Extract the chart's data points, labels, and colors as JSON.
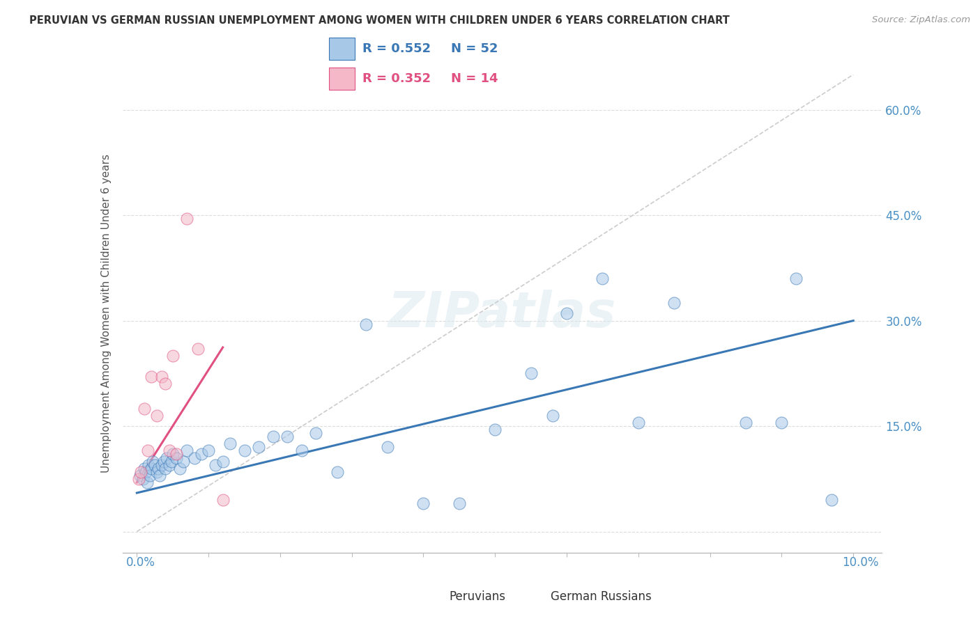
{
  "title": "PERUVIAN VS GERMAN RUSSIAN UNEMPLOYMENT AMONG WOMEN WITH CHILDREN UNDER 6 YEARS CORRELATION CHART",
  "source": "Source: ZipAtlas.com",
  "ylabel": "Unemployment Among Women with Children Under 6 years",
  "xlim": [
    0.0,
    10.0
  ],
  "ylim": [
    -3.0,
    65.0
  ],
  "yticks": [
    0.0,
    15.0,
    30.0,
    45.0,
    60.0
  ],
  "ytick_labels": [
    "",
    "15.0%",
    "30.0%",
    "45.0%",
    "60.0%"
  ],
  "legend_blue_r": "R = 0.552",
  "legend_blue_n": "N = 52",
  "legend_pink_r": "R = 0.352",
  "legend_pink_n": "N = 14",
  "blue_color": "#a8c8e8",
  "pink_color": "#f4b8c8",
  "blue_line_color": "#3a78b5",
  "pink_line_color": "#e05080",
  "peruvians_x": [
    0.05,
    0.08,
    0.1,
    0.12,
    0.14,
    0.16,
    0.18,
    0.2,
    0.22,
    0.25,
    0.28,
    0.3,
    0.32,
    0.35,
    0.38,
    0.4,
    0.42,
    0.45,
    0.48,
    0.5,
    0.55,
    0.6,
    0.65,
    0.7,
    0.8,
    0.9,
    1.0,
    1.1,
    1.2,
    1.3,
    1.5,
    1.7,
    1.9,
    2.1,
    2.3,
    2.5,
    2.8,
    3.2,
    3.5,
    4.0,
    4.5,
    5.0,
    5.5,
    5.8,
    6.0,
    6.5,
    7.0,
    7.5,
    8.5,
    9.0,
    9.2,
    9.7
  ],
  "peruvians_y": [
    8.0,
    7.5,
    9.0,
    8.5,
    7.0,
    9.5,
    8.0,
    9.0,
    10.0,
    9.5,
    8.5,
    9.0,
    8.0,
    9.5,
    10.0,
    9.0,
    10.5,
    9.5,
    10.0,
    11.0,
    10.5,
    9.0,
    10.0,
    11.5,
    10.5,
    11.0,
    11.5,
    9.5,
    10.0,
    12.5,
    11.5,
    12.0,
    13.5,
    13.5,
    11.5,
    14.0,
    8.5,
    29.5,
    12.0,
    4.0,
    4.0,
    14.5,
    22.5,
    16.5,
    31.0,
    36.0,
    15.5,
    32.5,
    15.5,
    15.5,
    36.0,
    4.5
  ],
  "german_x": [
    0.03,
    0.06,
    0.1,
    0.15,
    0.2,
    0.28,
    0.35,
    0.4,
    0.45,
    0.5,
    0.55,
    0.7,
    0.85,
    1.2
  ],
  "german_y": [
    7.5,
    8.5,
    17.5,
    11.5,
    22.0,
    16.5,
    22.0,
    21.0,
    11.5,
    25.0,
    11.0,
    44.5,
    26.0,
    4.5
  ],
  "blue_intercept": 5.5,
  "blue_slope": 2.45,
  "blue_x_start": 0.0,
  "blue_x_end": 10.0,
  "pink_intercept": 7.0,
  "pink_slope": 16.0,
  "pink_x_start": 0.0,
  "pink_x_end": 1.2,
  "ref_line_x": [
    0.0,
    10.0
  ],
  "ref_line_y": [
    0.0,
    65.0
  ],
  "watermark": "ZIPatlas",
  "marker_size": 150,
  "bottom_legend_labels": [
    "Peruvians",
    "German Russians"
  ]
}
